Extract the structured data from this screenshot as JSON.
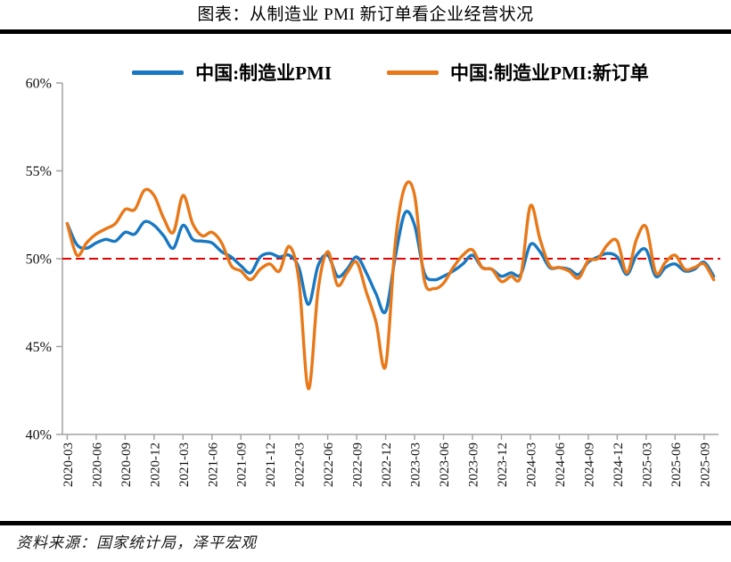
{
  "title": "图表：从制造业 PMI 新订单看企业经营状况",
  "source": "资料来源：国家统计局，泽平宏观",
  "colors": {
    "axis": "#A3A3A3",
    "text": "#111111",
    "rule": "#000000",
    "background": "#FFFFFF"
  },
  "chart_data": {
    "type": "line",
    "title": "图表：从制造业 PMI 新订单看企业经营状况",
    "xlabel": "",
    "ylabel": "",
    "ylim": [
      40,
      60
    ],
    "grid": false,
    "legend_position": "top",
    "y_tick_values": [
      60,
      55,
      50,
      45,
      40
    ],
    "y_ticks": [
      "60%",
      "55%",
      "50%",
      "45%",
      "40%"
    ],
    "x_tick_every": 3,
    "x_tick_labels": [
      "2020-03",
      "2020-06",
      "2020-09",
      "2020-12",
      "2021-03",
      "2021-06",
      "2021-09",
      "2021-12",
      "2022-03",
      "2022-06",
      "2022-09",
      "2022-12",
      "2023-03",
      "2023-06",
      "2023-09",
      "2023-12",
      "2024-03",
      "2024-06",
      "2024-09",
      "2024-12",
      "2025-03",
      "2025-06",
      "2025-09"
    ],
    "x": [
      "2020-03",
      "2020-04",
      "2020-05",
      "2020-06",
      "2020-07",
      "2020-08",
      "2020-09",
      "2020-10",
      "2020-11",
      "2020-12",
      "2021-01",
      "2021-02",
      "2021-03",
      "2021-04",
      "2021-05",
      "2021-06",
      "2021-07",
      "2021-08",
      "2021-09",
      "2021-10",
      "2021-11",
      "2021-12",
      "2022-01",
      "2022-02",
      "2022-03",
      "2022-04",
      "2022-05",
      "2022-06",
      "2022-07",
      "2022-08",
      "2022-09",
      "2022-10",
      "2022-11",
      "2022-12",
      "2023-01",
      "2023-02",
      "2023-03",
      "2023-04",
      "2023-05",
      "2023-06",
      "2023-07",
      "2023-08",
      "2023-09",
      "2023-10",
      "2023-11",
      "2023-12",
      "2024-01",
      "2024-02",
      "2024-03",
      "2024-04",
      "2024-05",
      "2024-06",
      "2024-07",
      "2024-08",
      "2024-09",
      "2024-10",
      "2024-11",
      "2024-12",
      "2025-01",
      "2025-02",
      "2025-03",
      "2025-04",
      "2025-05",
      "2025-06",
      "2025-07",
      "2025-08",
      "2025-09",
      "2025-10"
    ],
    "reference_line": {
      "value": 50,
      "color": "#E60000",
      "style": "dashed"
    },
    "series": [
      {
        "name": "中国:制造业PMI",
        "color": "#1878C2",
        "values": [
          52.0,
          50.8,
          50.6,
          50.9,
          51.1,
          51.0,
          51.5,
          51.4,
          52.1,
          51.9,
          51.3,
          50.6,
          51.9,
          51.1,
          51.0,
          50.9,
          50.4,
          50.1,
          49.6,
          49.2,
          50.1,
          50.3,
          50.1,
          50.2,
          49.5,
          47.4,
          49.6,
          50.2,
          49.0,
          49.4,
          50.1,
          49.2,
          48.0,
          47.0,
          50.1,
          52.6,
          51.9,
          49.2,
          48.8,
          49.0,
          49.3,
          49.7,
          50.2,
          49.5,
          49.4,
          49.0,
          49.2,
          49.1,
          50.8,
          50.4,
          49.5,
          49.5,
          49.4,
          49.1,
          49.8,
          50.1,
          50.3,
          50.1,
          49.1,
          50.2,
          50.5,
          49.0,
          49.5,
          49.7,
          49.3,
          49.4,
          49.8,
          49.0
        ]
      },
      {
        "name": "中国:制造业PMI:新订单",
        "color": "#E87818",
        "values": [
          52.0,
          50.2,
          50.9,
          51.4,
          51.7,
          52.0,
          52.8,
          52.8,
          53.9,
          53.6,
          52.3,
          51.5,
          53.6,
          52.0,
          51.3,
          51.5,
          50.9,
          49.6,
          49.3,
          48.8,
          49.4,
          49.7,
          49.3,
          50.7,
          48.8,
          42.6,
          48.2,
          50.4,
          48.5,
          49.2,
          49.8,
          48.1,
          46.4,
          43.9,
          50.9,
          54.1,
          53.6,
          48.8,
          48.3,
          48.6,
          49.5,
          50.2,
          50.5,
          49.5,
          49.4,
          48.7,
          49.0,
          49.0,
          53.0,
          51.1,
          49.6,
          49.5,
          49.3,
          48.9,
          49.9,
          50.0,
          50.8,
          51.0,
          49.2,
          51.1,
          51.8,
          49.2,
          49.8,
          50.2,
          49.4,
          49.5,
          49.7,
          48.8
        ]
      }
    ]
  }
}
